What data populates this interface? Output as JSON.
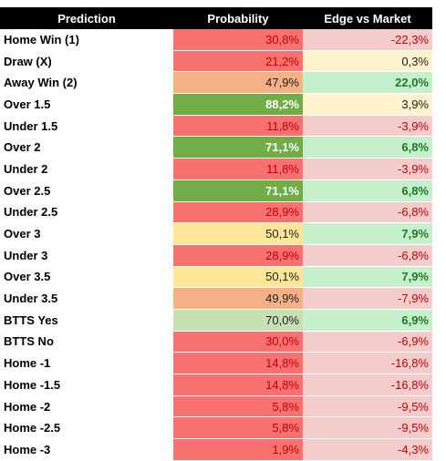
{
  "table": {
    "header": [
      "Prediction",
      "Probability",
      "Edge vs Market"
    ],
    "rows": [
      {
        "label": "Home Win (1)",
        "probability": "30,8%",
        "edge": "-22,3%",
        "probability_color": "#f87171",
        "edge_color": "#f4cccc"
      },
      {
        "label": "Draw (X)",
        "probability": "21,2%",
        "edge": "0,3%",
        "probability_color": "#f87171",
        "edge_color": "#fff2cc"
      },
      {
        "label": "Away Win (2)",
        "probability": "47,9%",
        "edge": "22,0%",
        "probability_color": "#f4b183",
        "edge_color": "#c6efce"
      },
      {
        "label": "Over 1.5",
        "probability": "88,2%",
        "edge": "3,9%",
        "probability_color": "#70ad47",
        "edge_color": "#fff2cc"
      },
      {
        "label": "Under 1.5",
        "probability": "11,8%",
        "edge": "-3,9%",
        "probability_color": "#f87171",
        "edge_color": "#f4cccc"
      },
      {
        "label": "Over 2",
        "probability": "71,1%",
        "edge": "6,8%",
        "probability_color": "#70ad47",
        "edge_color": "#c6efce"
      },
      {
        "label": "Under 2",
        "probability": "11,8%",
        "edge": "-3,9%",
        "probability_color": "#f87171",
        "edge_color": "#f4cccc"
      },
      {
        "label": "Over 2.5",
        "probability": "71,1%",
        "edge": "6,8%",
        "probability_color": "#70ad47",
        "edge_color": "#c6efce"
      },
      {
        "label": "Under 2.5",
        "probability": "28,9%",
        "edge": "-6,8%",
        "probability_color": "#f87171",
        "edge_color": "#f4cccc"
      },
      {
        "label": "Over 3",
        "probability": "50,1%",
        "edge": "7,9%",
        "probability_color": "#ffe699",
        "edge_color": "#c6efce"
      },
      {
        "label": "Under 3",
        "probability": "28,9%",
        "edge": "-6,8%",
        "probability_color": "#f87171",
        "edge_color": "#f4cccc"
      },
      {
        "label": "Over 3.5",
        "probability": "50,1%",
        "edge": "7,9%",
        "probability_color": "#ffe699",
        "edge_color": "#c6efce"
      },
      {
        "label": "Under 3.5",
        "probability": "49,9%",
        "edge": "-7,9%",
        "probability_color": "#f4b183",
        "edge_color": "#f4cccc"
      },
      {
        "label": "BTTS Yes",
        "probability": "70,0%",
        "edge": "6,9%",
        "probability_color": "#c6e0b4",
        "edge_color": "#c6efce"
      },
      {
        "label": "BTTS No",
        "probability": "30,0%",
        "edge": "-6,9%",
        "probability_color": "#f87171",
        "edge_color": "#f4cccc"
      },
      {
        "label": "Home -1",
        "probability": "14,8%",
        "edge": "-16,8%",
        "probability_color": "#f87171",
        "edge_color": "#f4cccc"
      },
      {
        "label": "Home -1.5",
        "probability": "14,8%",
        "edge": "-16,8%",
        "probability_color": "#f87171",
        "edge_color": "#f4cccc"
      },
      {
        "label": "Home -2",
        "probability": "5,8%",
        "edge": "-9,5%",
        "probability_color": "#f87171",
        "edge_color": "#f4cccc"
      },
      {
        "label": "Home -2.5",
        "probability": "5,8%",
        "edge": "-9,5%",
        "probability_color": "#f87171",
        "edge_color": "#f4cccc"
      },
      {
        "label": "Home -3",
        "probability": "1,9%",
        "edge": "-4,3%",
        "probability_color": "#f87171",
        "edge_color": "#f4cccc"
      }
    ]
  }
}
